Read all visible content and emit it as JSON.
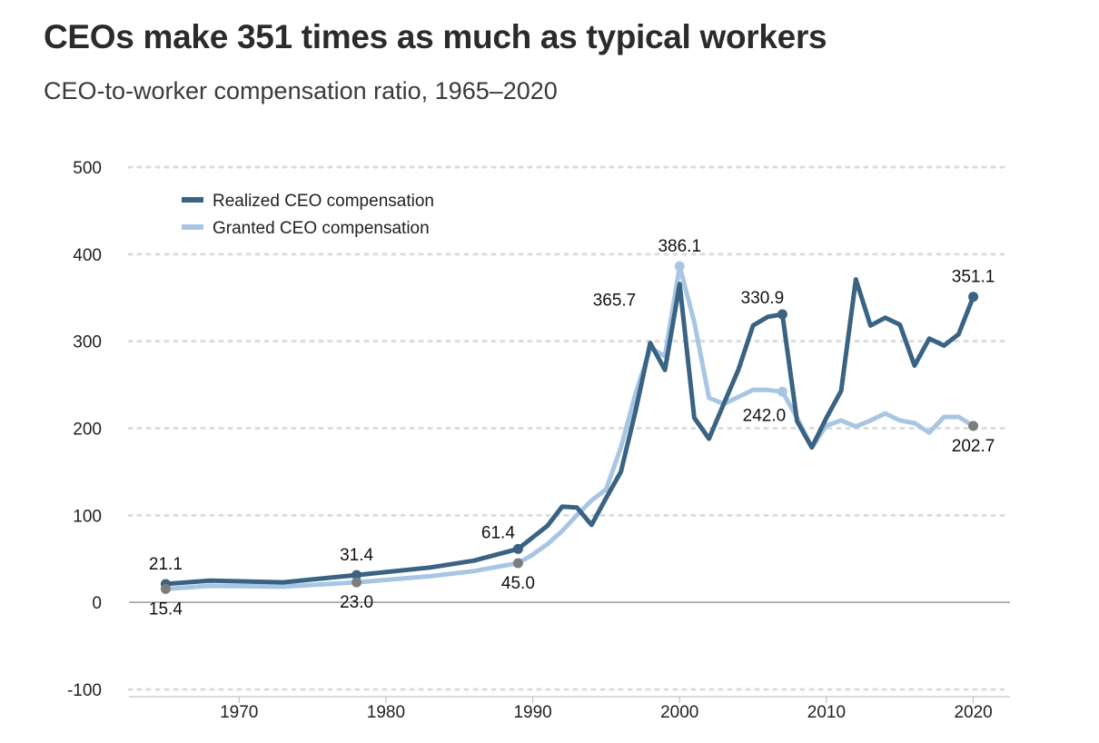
{
  "title": "CEOs make 351 times as much as typical workers",
  "subtitle": "CEO-to-worker compensation ratio, 1965–2020",
  "colors": {
    "realized": "#3a6383",
    "granted": "#a8c6e4",
    "marker_gray": "#7d7d7d",
    "grid": "#dcdcdc",
    "zero_line": "#999999"
  },
  "chart_data": {
    "type": "line",
    "title": "",
    "xlabel": "",
    "ylabel": "",
    "xlim": [
      1962.5,
      2022.5
    ],
    "ylim": [
      -100,
      500
    ],
    "x_ticks": [
      1970,
      1980,
      1990,
      2000,
      2010,
      2020
    ],
    "y_ticks": [
      -100,
      0,
      100,
      200,
      300,
      400,
      500
    ],
    "grid": "horizontal-dotted",
    "legend_position": "top-left",
    "series": [
      {
        "name": "Realized CEO compensation",
        "points": [
          [
            1965,
            21.1
          ],
          [
            1968,
            25
          ],
          [
            1973,
            23
          ],
          [
            1978,
            31.4
          ],
          [
            1983,
            40
          ],
          [
            1986,
            48
          ],
          [
            1989,
            61.4
          ],
          [
            1991,
            88
          ],
          [
            1992,
            110
          ],
          [
            1993,
            109
          ],
          [
            1994,
            89
          ],
          [
            1995,
            120
          ],
          [
            1996,
            150
          ],
          [
            1997,
            220
          ],
          [
            1998,
            298
          ],
          [
            1999,
            267
          ],
          [
            2000,
            365.7
          ],
          [
            2001,
            212
          ],
          [
            2002,
            188
          ],
          [
            2003,
            228
          ],
          [
            2004,
            267
          ],
          [
            2005,
            318
          ],
          [
            2006,
            328
          ],
          [
            2007,
            330.9
          ],
          [
            2008,
            208
          ],
          [
            2009,
            178
          ],
          [
            2010,
            212
          ],
          [
            2011,
            243
          ],
          [
            2012,
            371
          ],
          [
            2013,
            318
          ],
          [
            2014,
            327
          ],
          [
            2015,
            319
          ],
          [
            2016,
            272
          ],
          [
            2017,
            303
          ],
          [
            2018,
            295
          ],
          [
            2019,
            308
          ],
          [
            2020,
            351.1
          ]
        ]
      },
      {
        "name": "Granted CEO compensation",
        "points": [
          [
            1965,
            15.4
          ],
          [
            1968,
            19
          ],
          [
            1973,
            18
          ],
          [
            1978,
            23.0
          ],
          [
            1983,
            30
          ],
          [
            1986,
            36
          ],
          [
            1989,
            45.0
          ],
          [
            1990,
            55
          ],
          [
            1991,
            67
          ],
          [
            1992,
            82
          ],
          [
            1993,
            100
          ],
          [
            1994,
            117
          ],
          [
            1995,
            130
          ],
          [
            1996,
            178
          ],
          [
            1997,
            240
          ],
          [
            1998,
            292
          ],
          [
            1999,
            283
          ],
          [
            2000,
            386.1
          ],
          [
            2001,
            322
          ],
          [
            2002,
            235
          ],
          [
            2003,
            228
          ],
          [
            2004,
            236
          ],
          [
            2005,
            244
          ],
          [
            2006,
            244
          ],
          [
            2007,
            242.0
          ],
          [
            2008,
            212
          ],
          [
            2009,
            178
          ],
          [
            2010,
            203
          ],
          [
            2011,
            209
          ],
          [
            2012,
            202
          ],
          [
            2013,
            209
          ],
          [
            2014,
            217
          ],
          [
            2015,
            209
          ],
          [
            2016,
            206
          ],
          [
            2017,
            195
          ],
          [
            2018,
            213
          ],
          [
            2019,
            213
          ],
          [
            2020,
            202.7
          ]
        ]
      }
    ],
    "annotations": [
      {
        "series": 0,
        "x": 1965,
        "y": 21.1,
        "text": "21.1",
        "dot": true,
        "dot_color": "realized",
        "place": "above"
      },
      {
        "series": 1,
        "x": 1965,
        "y": 15.4,
        "text": "15.4",
        "dot": true,
        "dot_color": "marker_gray",
        "place": "below"
      },
      {
        "series": 0,
        "x": 1978,
        "y": 31.4,
        "text": "31.4",
        "dot": true,
        "dot_color": "realized",
        "place": "above"
      },
      {
        "series": 1,
        "x": 1978,
        "y": 23.0,
        "text": "23.0",
        "dot": true,
        "dot_color": "marker_gray",
        "place": "below"
      },
      {
        "series": 0,
        "x": 1989,
        "y": 61.4,
        "text": "61.4",
        "dot": true,
        "dot_color": "realized",
        "place": "above-left"
      },
      {
        "series": 1,
        "x": 1989,
        "y": 45.0,
        "text": "45.0",
        "dot": true,
        "dot_color": "marker_gray",
        "place": "below"
      },
      {
        "series": 0,
        "x": 2000,
        "y": 365.7,
        "text": "365.7",
        "dot": false,
        "place": "left"
      },
      {
        "series": 1,
        "x": 2000,
        "y": 386.1,
        "text": "386.1",
        "dot": true,
        "dot_color": "granted",
        "place": "above"
      },
      {
        "series": 0,
        "x": 2007,
        "y": 330.9,
        "text": "330.9",
        "dot": true,
        "dot_color": "realized",
        "place": "above-left"
      },
      {
        "series": 1,
        "x": 2007,
        "y": 242.0,
        "text": "242.0",
        "dot": true,
        "dot_color": "granted",
        "place": "below-left"
      },
      {
        "series": 0,
        "x": 2020,
        "y": 351.1,
        "text": "351.1",
        "dot": true,
        "dot_color": "realized",
        "place": "above"
      },
      {
        "series": 1,
        "x": 2020,
        "y": 202.7,
        "text": "202.7",
        "dot": true,
        "dot_color": "marker_gray",
        "place": "below"
      }
    ]
  }
}
